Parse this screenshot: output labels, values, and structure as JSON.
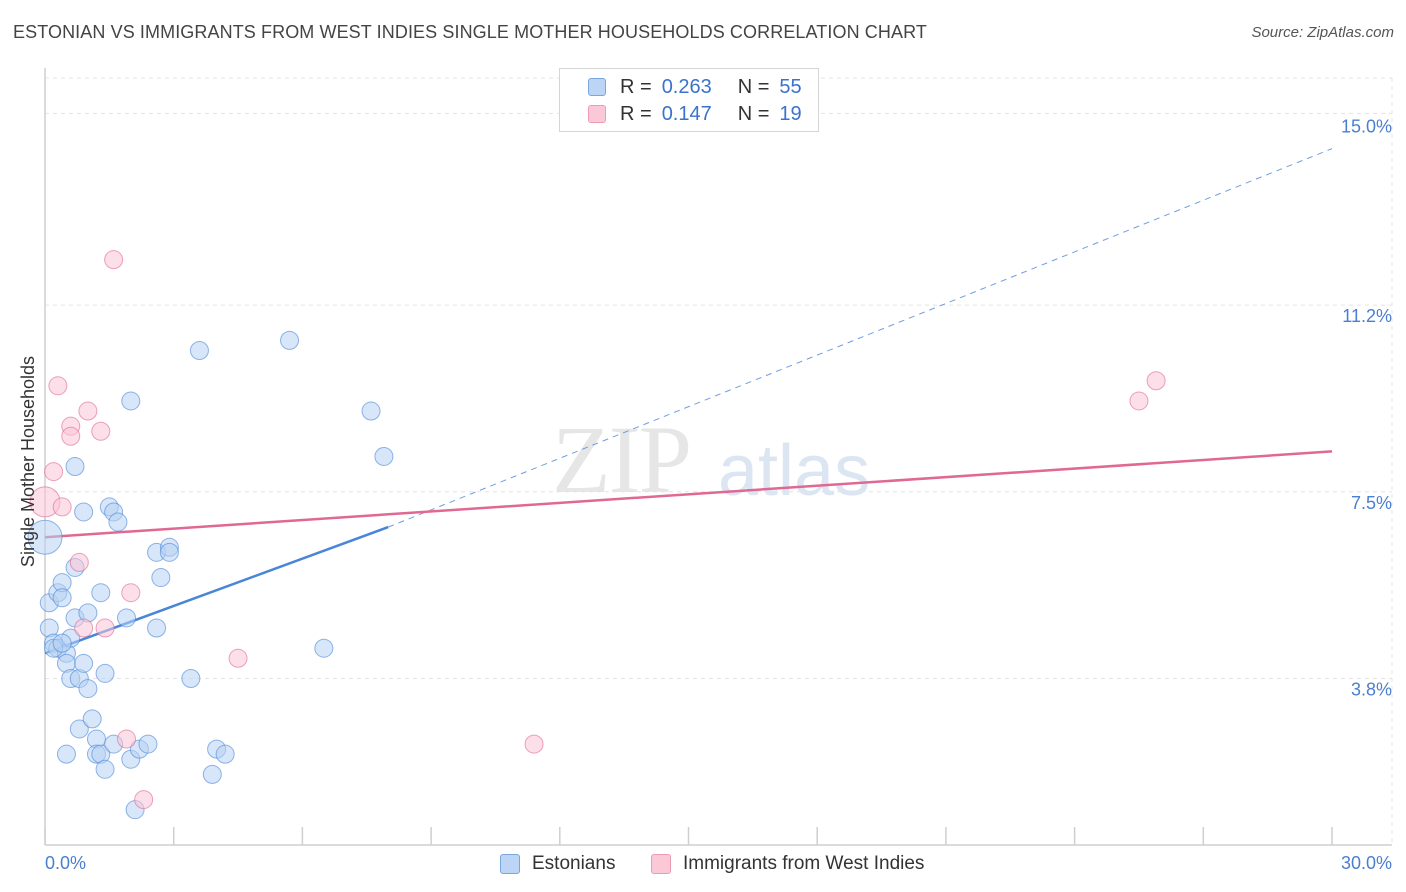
{
  "header": {
    "title": "ESTONIAN VS IMMIGRANTS FROM WEST INDIES SINGLE MOTHER HOUSEHOLDS CORRELATION CHART",
    "source": "Source: ZipAtlas.com"
  },
  "watermark": {
    "zip": "ZIP",
    "atlas": "atlas"
  },
  "legend": {
    "rows": [
      {
        "r_label": "R =",
        "r_value": "0.263",
        "n_label": "N =",
        "n_value": "55",
        "color": "#a9c8f0"
      },
      {
        "r_label": "R =",
        "r_value": "0.147",
        "n_label": "N =",
        "n_value": "19",
        "color": "#f7b6c9"
      }
    ]
  },
  "bottom_legend": {
    "series1": "Estonians",
    "series2": "Immigrants from West Indies"
  },
  "chart_data": {
    "type": "scatter",
    "title": "ESTONIAN VS IMMIGRANTS FROM WEST INDIES SINGLE MOTHER HOUSEHOLDS CORRELATION CHART",
    "xlabel": "",
    "ylabel": "Single Mother Households",
    "xlim": [
      0,
      30
    ],
    "ylim": [
      0.5,
      15.7
    ],
    "x_tick_labels": [
      "0.0%",
      "30.0%"
    ],
    "y_ticks": [
      3.8,
      7.5,
      11.2,
      15.0
    ],
    "y_tick_labels": [
      "3.8%",
      "7.5%",
      "11.2%",
      "15.0%"
    ],
    "grid": true,
    "series": [
      {
        "name": "Estonians",
        "color": "#4a86d8",
        "fill": "#b7d2f3",
        "points": [
          [
            0.0,
            6.6
          ],
          [
            0.1,
            5.3
          ],
          [
            0.1,
            4.8
          ],
          [
            0.2,
            4.5
          ],
          [
            0.3,
            4.4
          ],
          [
            0.3,
            5.5
          ],
          [
            0.4,
            5.7
          ],
          [
            0.4,
            5.4
          ],
          [
            0.5,
            4.3
          ],
          [
            0.5,
            4.1
          ],
          [
            0.6,
            4.6
          ],
          [
            0.6,
            3.8
          ],
          [
            0.7,
            5.0
          ],
          [
            0.7,
            6.0
          ],
          [
            0.7,
            8.0
          ],
          [
            0.8,
            3.8
          ],
          [
            0.8,
            2.8
          ],
          [
            0.9,
            4.1
          ],
          [
            0.9,
            7.1
          ],
          [
            1.0,
            5.1
          ],
          [
            1.0,
            3.6
          ],
          [
            1.1,
            3.0
          ],
          [
            1.2,
            2.6
          ],
          [
            1.2,
            2.3
          ],
          [
            1.3,
            5.5
          ],
          [
            1.3,
            2.3
          ],
          [
            1.4,
            3.9
          ],
          [
            1.4,
            2.0
          ],
          [
            1.5,
            7.2
          ],
          [
            1.6,
            7.1
          ],
          [
            1.6,
            2.5
          ],
          [
            1.7,
            6.9
          ],
          [
            1.9,
            5.0
          ],
          [
            2.0,
            2.2
          ],
          [
            2.0,
            9.3
          ],
          [
            2.1,
            1.2
          ],
          [
            2.2,
            2.4
          ],
          [
            2.4,
            2.5
          ],
          [
            2.6,
            4.8
          ],
          [
            2.6,
            6.3
          ],
          [
            2.7,
            5.8
          ],
          [
            2.9,
            6.4
          ],
          [
            2.9,
            6.3
          ],
          [
            3.4,
            3.8
          ],
          [
            3.6,
            10.3
          ],
          [
            3.9,
            1.9
          ],
          [
            4.0,
            2.4
          ],
          [
            4.2,
            2.3
          ],
          [
            5.7,
            10.5
          ],
          [
            6.5,
            4.4
          ],
          [
            7.6,
            9.1
          ],
          [
            7.9,
            8.2
          ],
          [
            0.2,
            4.4
          ],
          [
            0.4,
            4.5
          ],
          [
            0.5,
            2.3
          ]
        ],
        "trend": {
          "x": [
            0,
            8
          ],
          "y": [
            4.3,
            6.8
          ]
        },
        "trend_extension": {
          "x": [
            8,
            30
          ],
          "y": [
            6.8,
            14.3
          ]
        }
      },
      {
        "name": "Immigrants from West Indies",
        "color": "#e06892",
        "fill": "#f9c5d5",
        "points": [
          [
            0.0,
            7.3
          ],
          [
            0.2,
            7.9
          ],
          [
            0.3,
            9.6
          ],
          [
            0.4,
            7.2
          ],
          [
            0.6,
            8.8
          ],
          [
            0.6,
            8.6
          ],
          [
            0.8,
            6.1
          ],
          [
            0.9,
            4.8
          ],
          [
            1.0,
            9.1
          ],
          [
            1.3,
            8.7
          ],
          [
            1.4,
            4.8
          ],
          [
            1.6,
            12.1
          ],
          [
            1.9,
            2.6
          ],
          [
            2.0,
            5.5
          ],
          [
            2.3,
            1.4
          ],
          [
            4.5,
            4.2
          ],
          [
            11.4,
            2.5
          ],
          [
            25.5,
            9.3
          ],
          [
            25.9,
            9.7
          ]
        ],
        "trend": {
          "x": [
            0,
            30
          ],
          "y": [
            6.6,
            8.3
          ]
        }
      }
    ]
  }
}
